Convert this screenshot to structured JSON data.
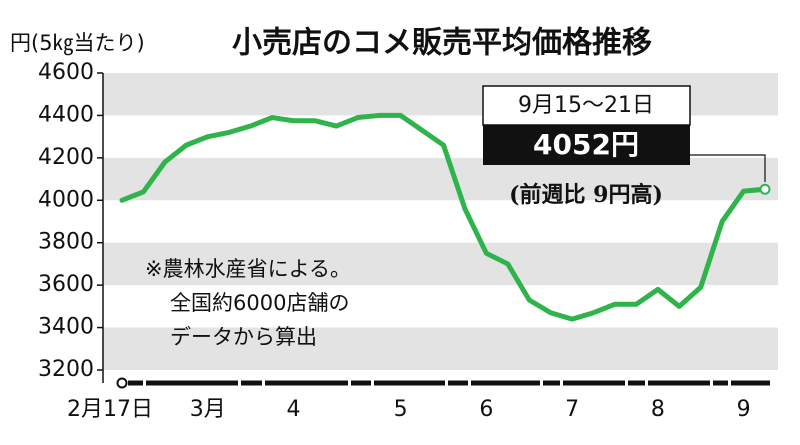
{
  "chart_data": {
    "type": "line",
    "title": "小売店のコメ販売平均価格推移",
    "y_label": "円(5㎏当たり)",
    "categories": [
      "2月17日",
      null,
      null,
      null,
      "3月",
      null,
      null,
      null,
      "4",
      null,
      null,
      null,
      null,
      "5",
      null,
      null,
      null,
      "6",
      null,
      null,
      null,
      "7",
      null,
      null,
      null,
      "8",
      null,
      null,
      null,
      "9",
      null
    ],
    "series": [
      {
        "name": "コメ販売平均価格",
        "color": "#2fb34b",
        "values": [
          4000,
          4040,
          4180,
          4260,
          4300,
          4320,
          4350,
          4390,
          4375,
          4375,
          4350,
          4390,
          4400,
          4400,
          4330,
          4260,
          3960,
          3750,
          3700,
          3530,
          3470,
          3440,
          3470,
          3510,
          3510,
          3580,
          3500,
          3590,
          3900,
          4043,
          4052
        ]
      }
    ],
    "ylim": [
      3200,
      4600
    ],
    "yticks": [
      3200,
      3400,
      3600,
      3800,
      4000,
      4200,
      4400,
      4600
    ],
    "grid": "bands",
    "annotations": {
      "period": "9月15〜21日",
      "latest": "4052円",
      "change": "(前週比 9円高)"
    },
    "note": [
      "※農林水産省による。",
      "全国約6000店舗の",
      "データから算出"
    ]
  }
}
